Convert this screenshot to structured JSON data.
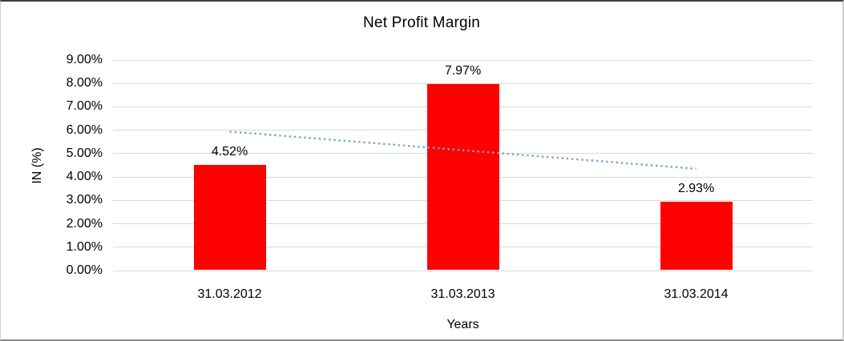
{
  "chart_data": {
    "type": "bar",
    "title": "Net Profit Margin",
    "xlabel": "Years",
    "ylabel": "IN (%)",
    "categories": [
      "31.03.2012",
      "31.03.2013",
      "31.03.2014"
    ],
    "values": [
      4.52,
      7.97,
      2.93
    ],
    "data_labels": [
      "4.52%",
      "7.97%",
      "2.93%"
    ],
    "y_ticks": [
      "0.00%",
      "1.00%",
      "2.00%",
      "3.00%",
      "4.00%",
      "5.00%",
      "6.00%",
      "7.00%",
      "8.00%",
      "9.00%"
    ],
    "ylim": [
      0,
      9
    ],
    "grid": true,
    "legend_position": "none",
    "bar_color": "#ff0000",
    "gridline_color": "#d9d9d9",
    "trendline": {
      "type": "linear",
      "style": "dotted",
      "color": "#74a2d8",
      "start_value": 5.94,
      "end_value": 4.35
    }
  }
}
